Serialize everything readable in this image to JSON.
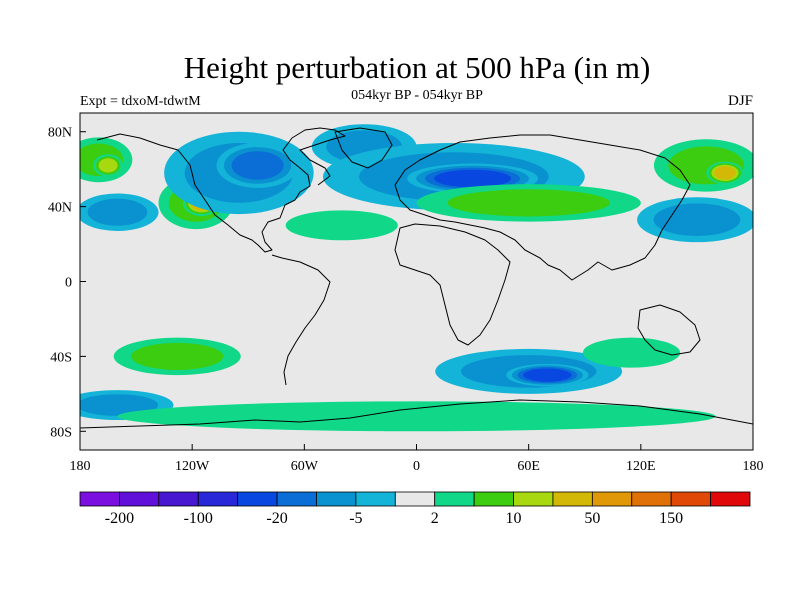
{
  "title": "Height perturbation at 500 hPa (in m)",
  "subtitle": "054kyr BP - 054kyr BP",
  "left_label": "Expt = tdxoM-tdwtM",
  "right_label": "DJF",
  "colors": {
    "background": "#ffffff",
    "map_fill": "#e8e8e8",
    "coast": "#000000"
  },
  "chart_data": {
    "type": "heatmap",
    "xlabel": "",
    "ylabel": "",
    "xlim": [
      -180,
      180
    ],
    "ylim": [
      -90,
      90
    ],
    "x_ticks": [
      {
        "value": -180,
        "label": "180"
      },
      {
        "value": -120,
        "label": "120W"
      },
      {
        "value": -60,
        "label": "60W"
      },
      {
        "value": 0,
        "label": "0"
      },
      {
        "value": 60,
        "label": "60E"
      },
      {
        "value": 120,
        "label": "120E"
      },
      {
        "value": 180,
        "label": "180"
      }
    ],
    "y_ticks": [
      {
        "value": 80,
        "label": "80N"
      },
      {
        "value": 40,
        "label": "40N"
      },
      {
        "value": 0,
        "label": "0"
      },
      {
        "value": -40,
        "label": "40S"
      },
      {
        "value": -80,
        "label": "80S"
      }
    ],
    "colorbar": {
      "colors": [
        "#7a0fe0",
        "#6010d8",
        "#4818d0",
        "#2828d8",
        "#0848e0",
        "#0a6ed6",
        "#0a92d0",
        "#14b4d8",
        "#e8e8e8",
        "#10d888",
        "#3ccc10",
        "#a8d810",
        "#d4b808",
        "#e09808",
        "#e07008",
        "#e04808",
        "#e00808"
      ],
      "labels": [
        {
          "index": 1,
          "text": "-200"
        },
        {
          "index": 3,
          "text": "-100"
        },
        {
          "index": 5,
          "text": "-20"
        },
        {
          "index": 7,
          "text": "-5"
        },
        {
          "index": 9,
          "text": "2"
        },
        {
          "index": 11,
          "text": "10"
        },
        {
          "index": 13,
          "text": "50"
        },
        {
          "index": 15,
          "text": "150"
        }
      ]
    },
    "anomaly_features": [
      {
        "lon": -170,
        "lat": 65,
        "rx": 18,
        "ry": 12,
        "level": 2
      },
      {
        "lon": -165,
        "lat": 62,
        "rx": 8,
        "ry": 6,
        "level": 3
      },
      {
        "lon": -118,
        "lat": 42,
        "rx": 20,
        "ry": 14,
        "level": 2
      },
      {
        "lon": -115,
        "lat": 42,
        "rx": 10,
        "ry": 7,
        "level": 4
      },
      {
        "lon": -160,
        "lat": 37,
        "rx": 22,
        "ry": 10,
        "level": -2
      },
      {
        "lon": -95,
        "lat": 58,
        "rx": 40,
        "ry": 22,
        "level": -2
      },
      {
        "lon": -85,
        "lat": 62,
        "rx": 22,
        "ry": 12,
        "level": -3
      },
      {
        "lon": -28,
        "lat": 72,
        "rx": 28,
        "ry": 12,
        "level": -2
      },
      {
        "lon": 20,
        "lat": 56,
        "rx": 70,
        "ry": 18,
        "level": -2
      },
      {
        "lon": 30,
        "lat": 55,
        "rx": 35,
        "ry": 8,
        "level": -4
      },
      {
        "lon": 60,
        "lat": 42,
        "rx": 60,
        "ry": 10,
        "level": 2
      },
      {
        "lon": 155,
        "lat": 62,
        "rx": 28,
        "ry": 14,
        "level": 2
      },
      {
        "lon": 165,
        "lat": 58,
        "rx": 10,
        "ry": 6,
        "level": 4
      },
      {
        "lon": 150,
        "lat": 33,
        "rx": 32,
        "ry": 12,
        "level": -2
      },
      {
        "lon": -40,
        "lat": 30,
        "rx": 30,
        "ry": 8,
        "level": 1
      },
      {
        "lon": -128,
        "lat": -40,
        "rx": 34,
        "ry": 10,
        "level": 2
      },
      {
        "lon": -160,
        "lat": -66,
        "rx": 30,
        "ry": 8,
        "level": -2
      },
      {
        "lon": 60,
        "lat": -48,
        "rx": 50,
        "ry": 12,
        "level": -2
      },
      {
        "lon": 70,
        "lat": -50,
        "rx": 22,
        "ry": 6,
        "level": -4
      },
      {
        "lon": 0,
        "lat": -72,
        "rx": 160,
        "ry": 8,
        "level": 1
      },
      {
        "lon": 115,
        "lat": -38,
        "rx": 26,
        "ry": 8,
        "level": 1
      }
    ]
  }
}
